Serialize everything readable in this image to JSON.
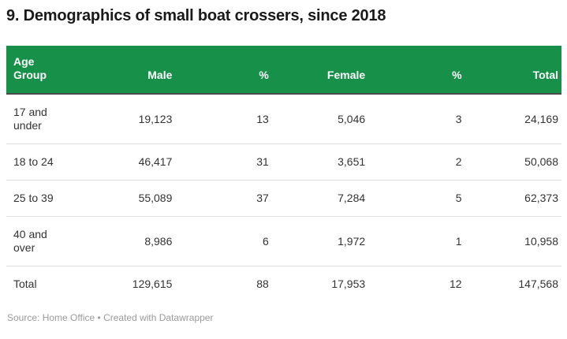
{
  "title": "9. Demographics of small boat crossers, since 2018",
  "table": {
    "headers": [
      "Age Group",
      "Male",
      "%",
      "Female",
      "%",
      "Total"
    ],
    "rows": [
      [
        "17 and under",
        "19,123",
        "13",
        "5,046",
        "3",
        "24,169"
      ],
      [
        "18 to 24",
        "46,417",
        "31",
        "3,651",
        "2",
        "50,068"
      ],
      [
        "25 to 39",
        "55,089",
        "37",
        "7,284",
        "5",
        "62,373"
      ],
      [
        "40 and over",
        "8,986",
        "6",
        "1,972",
        "1",
        "10,958"
      ],
      [
        "Total",
        "129,615",
        "88",
        "17,953",
        "12",
        "147,568"
      ]
    ]
  },
  "footer": {
    "source": "Source: Home Office",
    "separator": "•",
    "credit": "Created with Datawrapper"
  },
  "colors": {
    "header_bg": "#17914a",
    "header_text": "#ffffff",
    "header_border": "#4a4a4a",
    "row_border": "#dedede",
    "body_text": "#333333",
    "title_text": "#1a1a1a",
    "muted_text": "#9a9a9a"
  },
  "chart_data": {
    "type": "table",
    "title": "9. Demographics of small boat crossers, since 2018",
    "columns": [
      "Age Group",
      "Male",
      "%",
      "Female",
      "%",
      "Total"
    ],
    "rows": [
      [
        "17 and under",
        19123,
        13,
        5046,
        3,
        24169
      ],
      [
        "18 to 24",
        46417,
        31,
        3651,
        2,
        50068
      ],
      [
        "25 to 39",
        55089,
        37,
        7284,
        5,
        62373
      ],
      [
        "40 and over",
        8986,
        6,
        1972,
        1,
        10958
      ],
      [
        "Total",
        129615,
        88,
        17953,
        12,
        147568
      ]
    ],
    "source": "Home Office",
    "credit": "Created with Datawrapper"
  }
}
